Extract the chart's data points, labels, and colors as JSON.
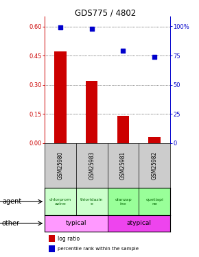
{
  "title": "GDS775 / 4802",
  "samples": [
    "GSM25980",
    "GSM25983",
    "GSM25981",
    "GSM25982"
  ],
  "log_ratio": [
    0.47,
    0.32,
    0.14,
    0.03
  ],
  "percentile": [
    99,
    98,
    79,
    74
  ],
  "agent_labels": [
    "chlorprom\nazine",
    "thioridazin\ne",
    "olanzap\nine",
    "quetiapi\nne"
  ],
  "agent_colors": [
    "#ccffcc",
    "#ccffcc",
    "#99ff99",
    "#99ff99"
  ],
  "other_colors": [
    "#ff99ff",
    "#ee44ee"
  ],
  "bar_color": "#cc0000",
  "dot_color": "#0000cc",
  "left_axis_color": "#cc0000",
  "right_axis_color": "#0000cc",
  "yticks_left": [
    0,
    0.15,
    0.3,
    0.45,
    0.6
  ],
  "yticks_right": [
    0,
    25,
    50,
    75,
    100
  ],
  "ylim_left": [
    0,
    0.65
  ],
  "ylim_right": [
    0,
    108.3
  ]
}
